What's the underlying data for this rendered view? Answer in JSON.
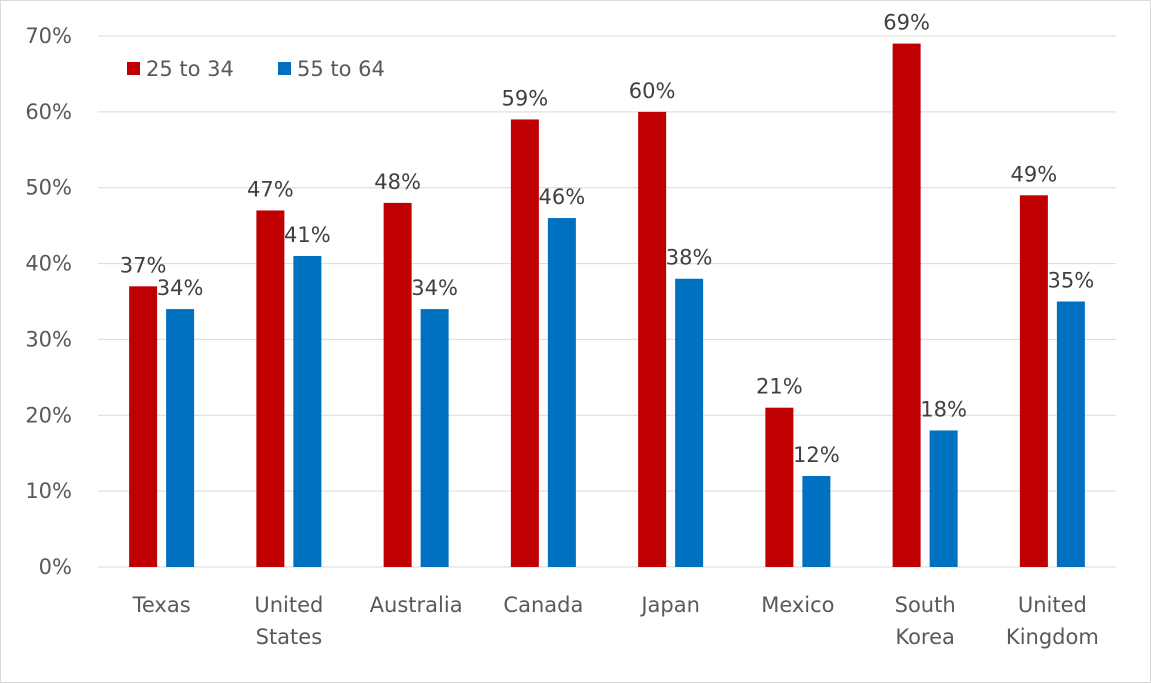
{
  "chart_data": {
    "type": "bar",
    "title": "",
    "xlabel": "",
    "ylabel": "",
    "ylim": [
      0,
      70
    ],
    "y_ticks": [
      0,
      10,
      20,
      30,
      40,
      50,
      60,
      70
    ],
    "y_tick_suffix": "%",
    "grid": true,
    "legend_position": "top-left",
    "categories": [
      [
        "Texas"
      ],
      [
        "United",
        "States"
      ],
      [
        "Australia"
      ],
      [
        "Canada"
      ],
      [
        "Japan"
      ],
      [
        "Mexico"
      ],
      [
        "South",
        "Korea"
      ],
      [
        "United",
        "Kingdom"
      ]
    ],
    "series": [
      {
        "name": "25 to 34",
        "color": "#c00000",
        "values": [
          37,
          47,
          48,
          59,
          60,
          21,
          69,
          49
        ]
      },
      {
        "name": "55 to 64",
        "color": "#0070c0",
        "values": [
          34,
          41,
          34,
          46,
          38,
          12,
          18,
          35
        ]
      }
    ]
  }
}
